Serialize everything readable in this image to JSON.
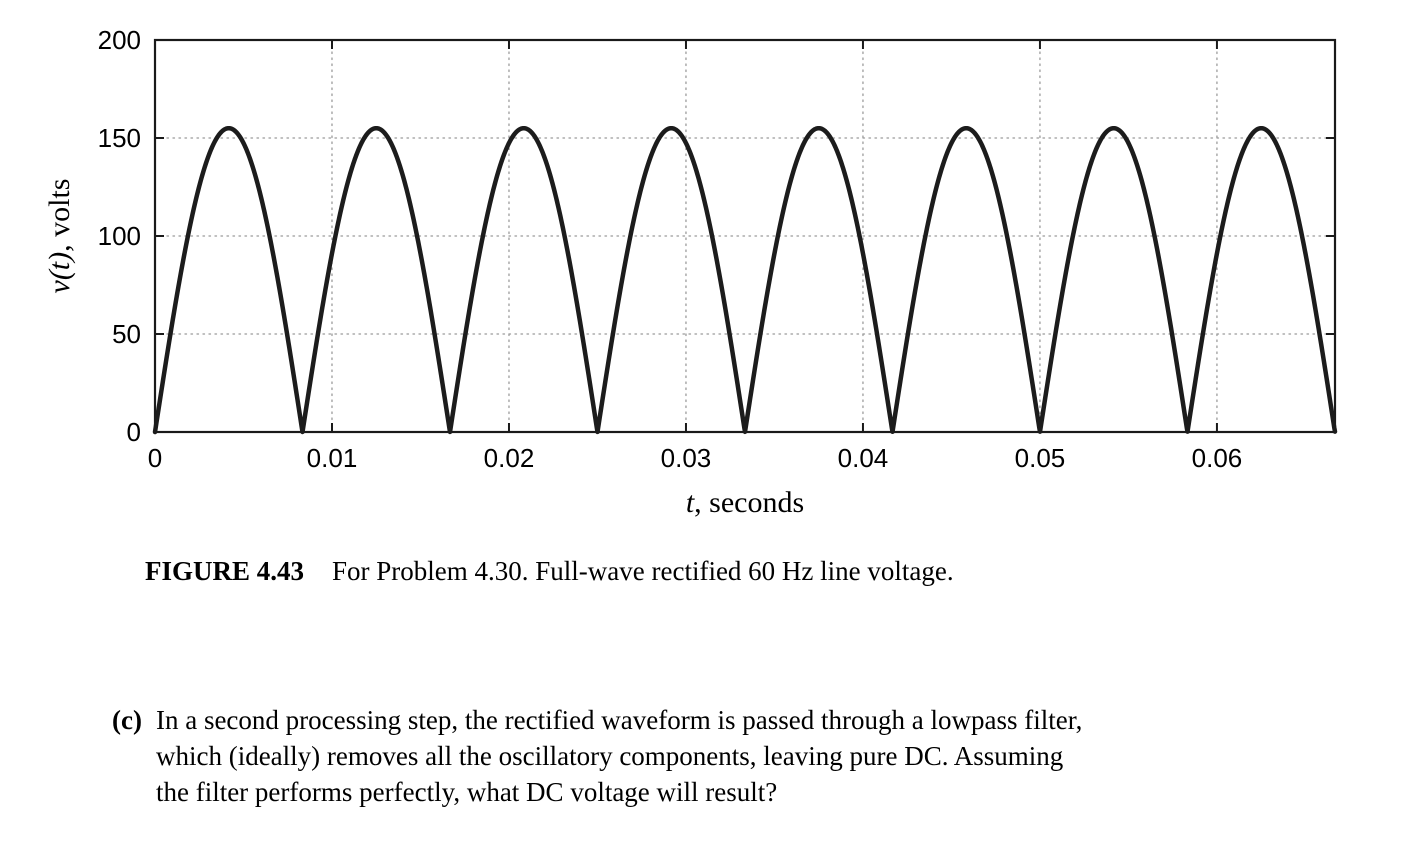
{
  "chart_data": {
    "type": "line",
    "title": "",
    "xlabel_var": "t",
    "xlabel_rest": ", seconds",
    "ylabel_var": "v(t)",
    "ylabel_rest": ", volts",
    "xlim": [
      0,
      0.06667
    ],
    "ylim": [
      0,
      200
    ],
    "x_ticks": [
      0,
      0.01,
      0.02,
      0.03,
      0.04,
      0.05,
      0.06
    ],
    "x_tick_labels": [
      "0",
      "0.01",
      "0.02",
      "0.03",
      "0.04",
      "0.05",
      "0.06"
    ],
    "y_ticks": [
      0,
      50,
      100,
      150,
      200
    ],
    "y_tick_labels": [
      "0",
      "50",
      "100",
      "150",
      "200"
    ],
    "grid": "dotted",
    "legend": "none",
    "line_color": "#1c1c1c",
    "line_width": 4.5,
    "waveform": {
      "description": "full-wave rectified 60 Hz sine: v(t) = |A sin(2*pi*f*t)|",
      "amplitude_volts": 155,
      "frequency_hz": 60,
      "num_half_cycles_shown": 8,
      "peak_value_volts": 155,
      "peak_times_s": [
        0.00417,
        0.0125,
        0.02083,
        0.02917,
        0.0375,
        0.04583,
        0.05417,
        0.0625
      ],
      "zero_times_s": [
        0,
        0.00833,
        0.01667,
        0.025,
        0.03333,
        0.04167,
        0.05,
        0.05833,
        0.06667
      ]
    }
  },
  "caption": {
    "label": "FIGURE 4.43",
    "text": "For Problem 4.30. Full-wave rectified 60 Hz line voltage."
  },
  "problem": {
    "part_label": "(c)",
    "text_lines": [
      "In a second processing step, the rectified waveform is passed through a lowpass filter,",
      "which (ideally) removes all the oscillatory components, leaving pure DC. Assuming",
      "the filter performs perfectly, what DC voltage will result?"
    ]
  }
}
